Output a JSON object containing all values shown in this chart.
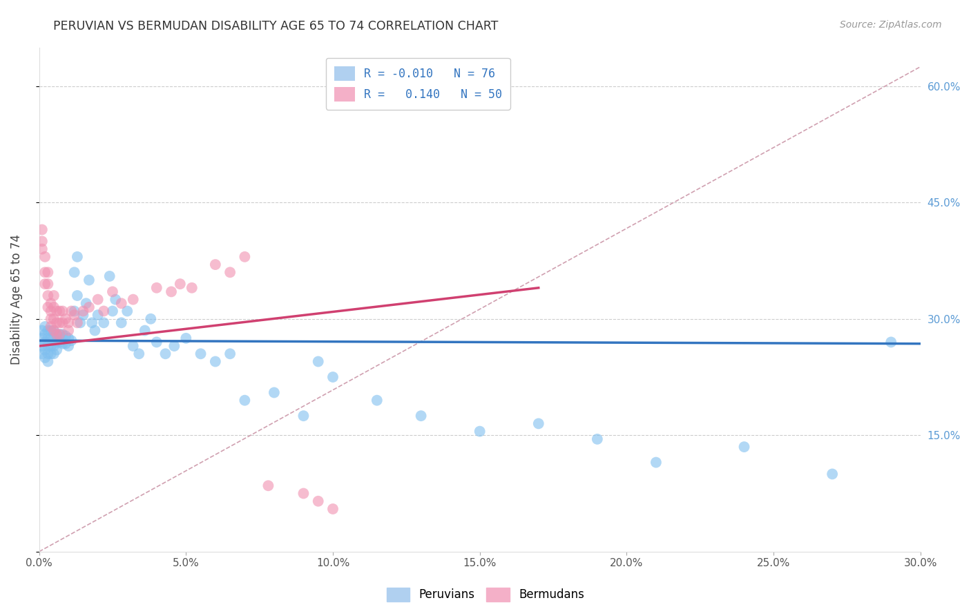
{
  "title": "PERUVIAN VS BERMUDAN DISABILITY AGE 65 TO 74 CORRELATION CHART",
  "source": "Source: ZipAtlas.com",
  "ylabel": "Disability Age 65 to 74",
  "xlim": [
    0.0,
    0.3
  ],
  "ylim": [
    0.0,
    0.65
  ],
  "blue_color": "#7fbfef",
  "pink_color": "#f090b0",
  "blue_line_color": "#3375c0",
  "pink_line_color": "#d04070",
  "ref_line_color": "#d0a0b0",
  "background_color": "#ffffff",
  "legend_color": "#3375c0",
  "peruvians_x": [
    0.001,
    0.001,
    0.001,
    0.001,
    0.002,
    0.002,
    0.002,
    0.002,
    0.002,
    0.003,
    0.003,
    0.003,
    0.003,
    0.003,
    0.004,
    0.004,
    0.004,
    0.004,
    0.005,
    0.005,
    0.005,
    0.005,
    0.006,
    0.006,
    0.006,
    0.007,
    0.007,
    0.008,
    0.008,
    0.009,
    0.009,
    0.01,
    0.01,
    0.011,
    0.012,
    0.012,
    0.013,
    0.013,
    0.014,
    0.015,
    0.016,
    0.017,
    0.018,
    0.019,
    0.02,
    0.022,
    0.024,
    0.025,
    0.026,
    0.028,
    0.03,
    0.032,
    0.034,
    0.036,
    0.038,
    0.04,
    0.043,
    0.046,
    0.05,
    0.055,
    0.06,
    0.065,
    0.07,
    0.08,
    0.09,
    0.095,
    0.1,
    0.115,
    0.13,
    0.15,
    0.17,
    0.19,
    0.21,
    0.24,
    0.27,
    0.29
  ],
  "peruvians_y": [
    0.285,
    0.275,
    0.265,
    0.255,
    0.29,
    0.28,
    0.27,
    0.26,
    0.25,
    0.285,
    0.275,
    0.265,
    0.255,
    0.245,
    0.285,
    0.275,
    0.265,
    0.255,
    0.285,
    0.275,
    0.265,
    0.255,
    0.28,
    0.27,
    0.26,
    0.28,
    0.27,
    0.28,
    0.268,
    0.278,
    0.268,
    0.275,
    0.265,
    0.272,
    0.36,
    0.31,
    0.38,
    0.33,
    0.295,
    0.305,
    0.32,
    0.35,
    0.295,
    0.285,
    0.305,
    0.295,
    0.355,
    0.31,
    0.325,
    0.295,
    0.31,
    0.265,
    0.255,
    0.285,
    0.3,
    0.27,
    0.255,
    0.265,
    0.275,
    0.255,
    0.245,
    0.255,
    0.195,
    0.205,
    0.175,
    0.245,
    0.225,
    0.195,
    0.175,
    0.155,
    0.165,
    0.145,
    0.115,
    0.135,
    0.1,
    0.27
  ],
  "bermudans_x": [
    0.001,
    0.001,
    0.001,
    0.002,
    0.002,
    0.002,
    0.003,
    0.003,
    0.003,
    0.003,
    0.004,
    0.004,
    0.004,
    0.004,
    0.005,
    0.005,
    0.005,
    0.005,
    0.006,
    0.006,
    0.006,
    0.007,
    0.007,
    0.007,
    0.008,
    0.008,
    0.009,
    0.01,
    0.01,
    0.011,
    0.012,
    0.013,
    0.015,
    0.017,
    0.02,
    0.022,
    0.025,
    0.028,
    0.032,
    0.04,
    0.045,
    0.048,
    0.052,
    0.06,
    0.065,
    0.07,
    0.078,
    0.09,
    0.095,
    0.1
  ],
  "bermudans_y": [
    0.415,
    0.4,
    0.39,
    0.38,
    0.36,
    0.345,
    0.36,
    0.345,
    0.33,
    0.315,
    0.32,
    0.31,
    0.3,
    0.29,
    0.33,
    0.315,
    0.3,
    0.285,
    0.31,
    0.295,
    0.28,
    0.31,
    0.295,
    0.28,
    0.31,
    0.295,
    0.3,
    0.295,
    0.285,
    0.31,
    0.305,
    0.295,
    0.31,
    0.315,
    0.325,
    0.31,
    0.335,
    0.32,
    0.325,
    0.34,
    0.335,
    0.345,
    0.34,
    0.37,
    0.36,
    0.38,
    0.085,
    0.075,
    0.065,
    0.055
  ],
  "blue_trend_x": [
    0.0,
    0.3
  ],
  "blue_trend_y": [
    0.272,
    0.268
  ],
  "pink_trend_x": [
    0.0,
    0.17
  ],
  "pink_trend_y": [
    0.265,
    0.34
  ]
}
